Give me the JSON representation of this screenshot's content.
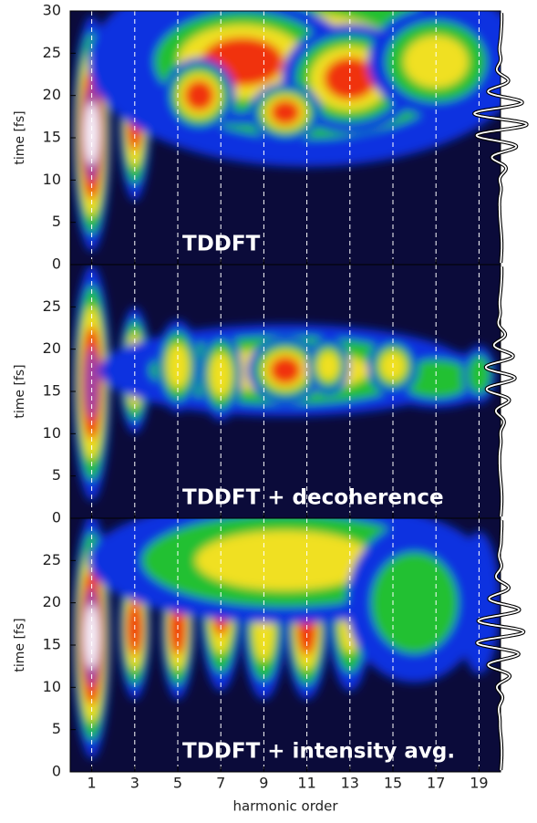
{
  "chart_data": [
    {
      "type": "heatmap",
      "annotation": "TDDFT",
      "ylabel": "time [fs]",
      "xlim": [
        0,
        20
      ],
      "xticks": [
        1,
        3,
        5,
        7,
        9,
        11,
        13,
        15,
        17,
        19
      ],
      "ylim": [
        0,
        30
      ],
      "yticks": [
        0,
        5,
        10,
        15,
        20,
        25,
        30
      ],
      "grid": true
    },
    {
      "type": "heatmap",
      "annotation": "TDDFT + decoherence",
      "ylabel": "time [fs]",
      "xlim": [
        0,
        20
      ],
      "xticks": [
        1,
        3,
        5,
        7,
        9,
        11,
        13,
        15,
        17,
        19
      ],
      "ylim": [
        0,
        30
      ],
      "yticks": [
        0,
        5,
        10,
        15,
        20,
        25
      ],
      "grid": true
    },
    {
      "type": "heatmap",
      "annotation": "TDDFT + intensity avg.",
      "ylabel": "time [fs]",
      "xlabel": "harmonic order",
      "xlim": [
        0,
        20
      ],
      "xticks": [
        1,
        3,
        5,
        7,
        9,
        11,
        13,
        15,
        17,
        19
      ],
      "ylim": [
        0,
        30
      ],
      "yticks": [
        0,
        5,
        10,
        15,
        20,
        25
      ],
      "grid": true
    }
  ]
}
